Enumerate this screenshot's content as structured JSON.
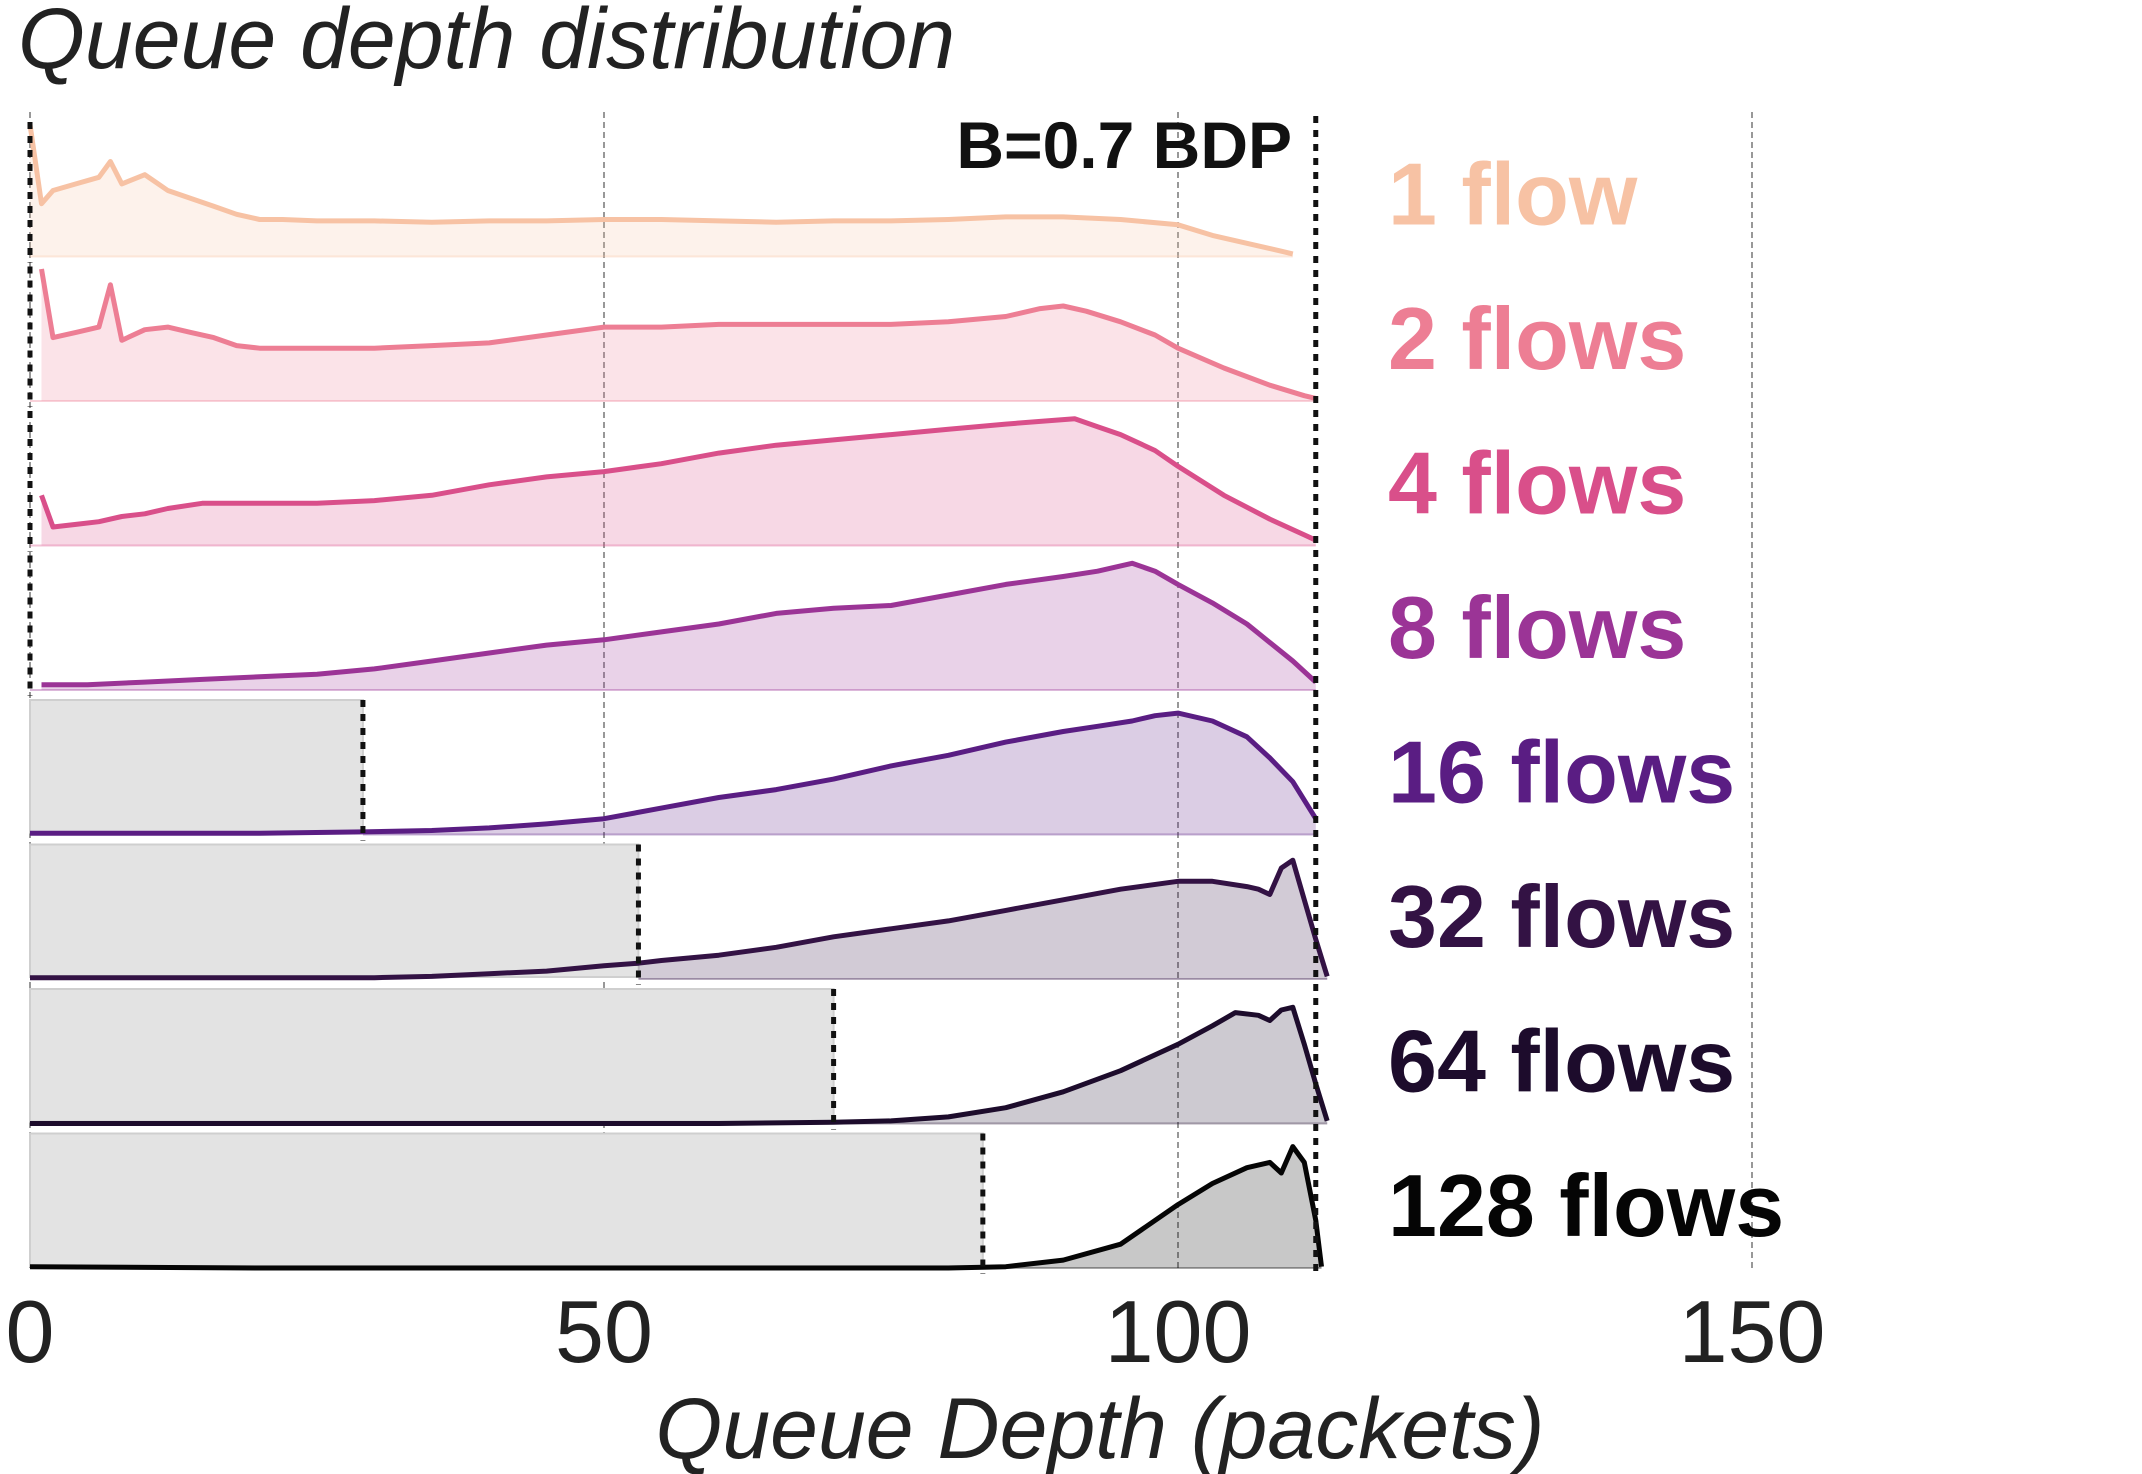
{
  "chart_data": {
    "type": "area",
    "title": "Queue depth distribution",
    "xlabel": "Queue Depth (packets)",
    "ylabel": "",
    "xlim": [
      0,
      150
    ],
    "x_ticks": [
      "0",
      "50",
      "100",
      "150"
    ],
    "x_tick_values": [
      0,
      50,
      100,
      150
    ],
    "grid": "vertical dashed lines at x ticks",
    "buffer_line": {
      "label": "B=0.7 BDP",
      "x": 112
    },
    "series": [
      {
        "name": "1 flow",
        "color": "#f7c2a4",
        "min_marker": 0,
        "x": [
          0,
          1,
          2,
          4,
          6,
          7,
          8,
          10,
          11,
          12,
          14,
          16,
          18,
          20,
          22,
          25,
          30,
          35,
          40,
          45,
          50,
          55,
          60,
          65,
          70,
          75,
          80,
          85,
          90,
          95,
          100,
          103,
          106,
          109,
          110
        ],
        "values": [
          1.0,
          0.4,
          0.5,
          0.55,
          0.6,
          0.72,
          0.55,
          0.62,
          0.56,
          0.5,
          0.44,
          0.38,
          0.32,
          0.28,
          0.28,
          0.27,
          0.27,
          0.26,
          0.27,
          0.27,
          0.28,
          0.28,
          0.27,
          0.26,
          0.27,
          0.27,
          0.28,
          0.3,
          0.3,
          0.28,
          0.24,
          0.16,
          0.1,
          0.04,
          0.02
        ]
      },
      {
        "name": "2 flows",
        "color": "#ed7e94",
        "min_marker": 0,
        "x": [
          1,
          2,
          4,
          6,
          7,
          8,
          10,
          12,
          14,
          16,
          18,
          20,
          25,
          30,
          35,
          40,
          45,
          50,
          55,
          60,
          65,
          70,
          75,
          80,
          85,
          88,
          90,
          92,
          95,
          98,
          100,
          104,
          108,
          111,
          112
        ],
        "values": [
          1.0,
          0.48,
          0.52,
          0.56,
          0.88,
          0.46,
          0.54,
          0.56,
          0.52,
          0.48,
          0.42,
          0.4,
          0.4,
          0.4,
          0.42,
          0.44,
          0.5,
          0.56,
          0.56,
          0.58,
          0.58,
          0.58,
          0.58,
          0.6,
          0.64,
          0.7,
          0.72,
          0.68,
          0.6,
          0.5,
          0.4,
          0.25,
          0.12,
          0.04,
          0.02
        ]
      },
      {
        "name": "4 flows",
        "color": "#d94f8a",
        "min_marker": 0,
        "x": [
          1,
          2,
          4,
          6,
          8,
          10,
          12,
          15,
          20,
          25,
          30,
          35,
          40,
          45,
          50,
          55,
          60,
          65,
          70,
          75,
          80,
          85,
          88,
          91,
          93,
          95,
          98,
          100,
          104,
          108,
          111,
          112
        ],
        "values": [
          0.38,
          0.14,
          0.16,
          0.18,
          0.22,
          0.24,
          0.28,
          0.32,
          0.32,
          0.32,
          0.34,
          0.38,
          0.46,
          0.52,
          0.56,
          0.62,
          0.7,
          0.76,
          0.8,
          0.84,
          0.88,
          0.92,
          0.94,
          0.96,
          0.9,
          0.84,
          0.72,
          0.6,
          0.38,
          0.2,
          0.08,
          0.04
        ]
      },
      {
        "name": "8 flows",
        "color": "#9b3496",
        "min_marker": 0,
        "x": [
          1,
          5,
          10,
          15,
          20,
          25,
          30,
          35,
          40,
          45,
          50,
          55,
          60,
          65,
          70,
          75,
          80,
          85,
          90,
          93,
          96,
          98,
          100,
          103,
          106,
          108,
          110,
          112
        ],
        "values": [
          0.04,
          0.04,
          0.06,
          0.08,
          0.1,
          0.12,
          0.16,
          0.22,
          0.28,
          0.34,
          0.38,
          0.44,
          0.5,
          0.58,
          0.62,
          0.64,
          0.72,
          0.8,
          0.86,
          0.9,
          0.96,
          0.9,
          0.8,
          0.66,
          0.5,
          0.36,
          0.22,
          0.06
        ]
      },
      {
        "name": "16 flows",
        "color": "#5a1d83",
        "min_marker": 29,
        "x": [
          0,
          10,
          20,
          29,
          35,
          40,
          45,
          50,
          55,
          60,
          65,
          70,
          75,
          80,
          85,
          90,
          93,
          96,
          98,
          100,
          103,
          106,
          108,
          110,
          112
        ],
        "values": [
          0.01,
          0.01,
          0.01,
          0.02,
          0.03,
          0.05,
          0.08,
          0.12,
          0.2,
          0.28,
          0.34,
          0.42,
          0.52,
          0.6,
          0.7,
          0.78,
          0.82,
          0.86,
          0.9,
          0.92,
          0.86,
          0.74,
          0.58,
          0.4,
          0.12
        ]
      },
      {
        "name": "32 flows",
        "color": "#331244",
        "min_marker": 53,
        "x": [
          0,
          10,
          20,
          30,
          35,
          40,
          45,
          50,
          53,
          55,
          60,
          65,
          70,
          75,
          80,
          85,
          90,
          95,
          100,
          103,
          106,
          107,
          108,
          109,
          110,
          111,
          112,
          113
        ],
        "values": [
          0.01,
          0.01,
          0.01,
          0.01,
          0.02,
          0.04,
          0.06,
          0.1,
          0.12,
          0.14,
          0.18,
          0.24,
          0.32,
          0.38,
          0.44,
          0.52,
          0.6,
          0.68,
          0.74,
          0.74,
          0.7,
          0.68,
          0.64,
          0.84,
          0.9,
          0.6,
          0.3,
          0.02
        ]
      },
      {
        "name": "64 flows",
        "color": "#1d0c2c",
        "min_marker": 70,
        "x": [
          0,
          20,
          40,
          60,
          70,
          75,
          80,
          85,
          90,
          95,
          100,
          103,
          105,
          107,
          108,
          109,
          110,
          111,
          112,
          113
        ],
        "values": [
          0.0,
          0.0,
          0.0,
          0.0,
          0.01,
          0.02,
          0.05,
          0.12,
          0.24,
          0.4,
          0.6,
          0.74,
          0.84,
          0.82,
          0.78,
          0.86,
          0.88,
          0.6,
          0.3,
          0.02
        ]
      },
      {
        "name": "128 flows",
        "color": "#050505",
        "min_marker": 83,
        "x": [
          0,
          20,
          40,
          60,
          80,
          85,
          90,
          95,
          100,
          103,
          106,
          108,
          109,
          110,
          111,
          112,
          112.5
        ],
        "values": [
          0.01,
          0.0,
          0.0,
          0.0,
          0.0,
          0.01,
          0.06,
          0.18,
          0.48,
          0.64,
          0.76,
          0.8,
          0.72,
          0.92,
          0.8,
          0.36,
          0.01
        ]
      }
    ]
  }
}
